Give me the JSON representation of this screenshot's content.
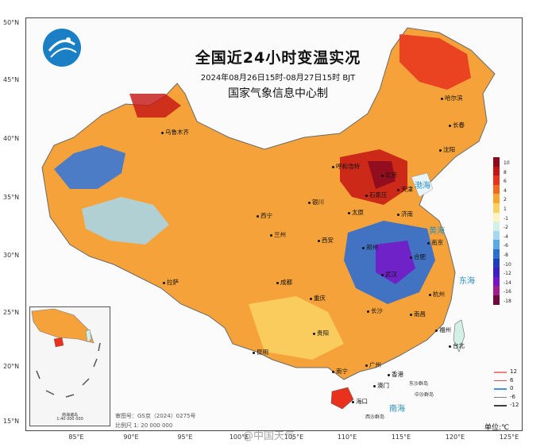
{
  "title": "全国近24小时变温实况",
  "subtitle": "2024年08月26日15时-08月27日15时 BJT",
  "issuer": "国家气象信息中心制",
  "unit_label": "单位:℃",
  "latitudes": [
    "50°N",
    "45°N",
    "40°N",
    "35°N",
    "30°N",
    "25°N",
    "20°N",
    "15°N"
  ],
  "longitudes": [
    "85°E",
    "90°E",
    "95°E",
    "100°E",
    "105°E",
    "110°E",
    "115°E",
    "120°E",
    "125°E"
  ],
  "legend": [
    {
      "label": "10",
      "color": "#8c0a1e"
    },
    {
      "label": "8",
      "color": "#c41414"
    },
    {
      "label": "6",
      "color": "#e8321e"
    },
    {
      "label": "4",
      "color": "#f2691e"
    },
    {
      "label": "2",
      "color": "#f7a52c"
    },
    {
      "label": "1",
      "color": "#fad264"
    },
    {
      "label": "-1",
      "color": "#fff4c0"
    },
    {
      "label": "-2",
      "color": "#d2f0e6"
    },
    {
      "label": "-4",
      "color": "#a5d8f0"
    },
    {
      "label": "-6",
      "color": "#5aaae6"
    },
    {
      "label": "-8",
      "color": "#2d6ed2"
    },
    {
      "label": "-10",
      "color": "#1e3cbe"
    },
    {
      "label": "-12",
      "color": "#3c1ec8"
    },
    {
      "label": "-14",
      "color": "#7814c8"
    },
    {
      "label": "-16",
      "color": "#a01e8c"
    },
    {
      "label": "-18",
      "color": "#6e0a3c"
    }
  ],
  "isolines": [
    {
      "label": "12",
      "color": "#f08080"
    },
    {
      "label": "6",
      "color": "#e05050"
    },
    {
      "label": "0",
      "color": "#4a8ee0"
    },
    {
      "label": "-6",
      "color": "#808080"
    },
    {
      "label": "-12",
      "color": "#404040"
    }
  ],
  "cities": [
    "乌鲁木齐",
    "哈尔滨",
    "长春",
    "沈阳",
    "呼和浩特",
    "北京",
    "天津",
    "石家庄",
    "太原",
    "济南",
    "银川",
    "西宁",
    "兰州",
    "郑州",
    "西安",
    "合肥",
    "南京",
    "拉萨",
    "成都",
    "重庆",
    "武汉",
    "杭州",
    "长沙",
    "南昌",
    "贵阳",
    "福州",
    "台北",
    "昆明",
    "南宁",
    "广州",
    "香港",
    "澳门",
    "海口"
  ],
  "seas": [
    "渤海",
    "黄海",
    "东海",
    "南海"
  ],
  "sea_small": [
    "东沙群岛",
    "西沙群岛",
    "中沙群岛"
  ],
  "credits": [
    "审图号：GS京（2024）0275号",
    "比例尺 1: 20 000 000"
  ],
  "inset": {
    "name": "南海诸岛",
    "scale": "1:40 000 000"
  },
  "watermark": "@中国天气"
}
